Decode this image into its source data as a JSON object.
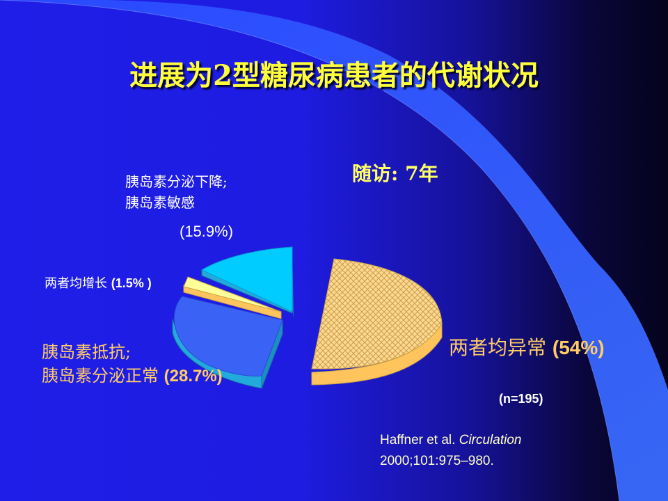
{
  "slide": {
    "title": "进展为2型糖尿病患者的代谢状况",
    "followup": "随访: 7年",
    "sample_size": "(n=195)",
    "reference": {
      "authors": "Haffner et al.",
      "journal": "Circulation",
      "citation": "2000;101:975–980."
    }
  },
  "labels": {
    "both_abnormal_text": "两者均异常 ",
    "both_abnormal_pct": "(54%)",
    "insulin_resistance_line1": "胰岛素抵抗;",
    "insulin_resistance_line2": "胰岛素分泌正常 ",
    "insulin_resistance_pct": "(28.7%)",
    "secretion_decrease_line1": "胰岛素分泌下降;",
    "secretion_decrease_line2": "胰岛素敏感",
    "secretion_decrease_pct": "(15.9%)",
    "both_increase_text": "两者均增长 ",
    "both_increase_pct": "(1.5% )"
  },
  "colors": {
    "title": "#ffff3c",
    "both_abnormal": "#ffcc66",
    "insulin_resistance": "#3366ff",
    "secretion_decrease": "#00ccff",
    "both_increase": "#ffff99"
  },
  "chart_data": {
    "type": "pie",
    "style": "3d-exploded",
    "slices": [
      {
        "label": "两者均异常",
        "value": 54,
        "color": "#ffcc66",
        "pattern": "crosshatch"
      },
      {
        "label": "胰岛素抵抗; 胰岛素分泌正常",
        "value": 28.7,
        "color": "#3366ff"
      },
      {
        "label": "两者均增长",
        "value": 1.5,
        "color": "#ffff99"
      },
      {
        "label": "胰岛素分泌下降; 胰岛素敏感",
        "value": 15.9,
        "color": "#00ccff"
      }
    ]
  }
}
